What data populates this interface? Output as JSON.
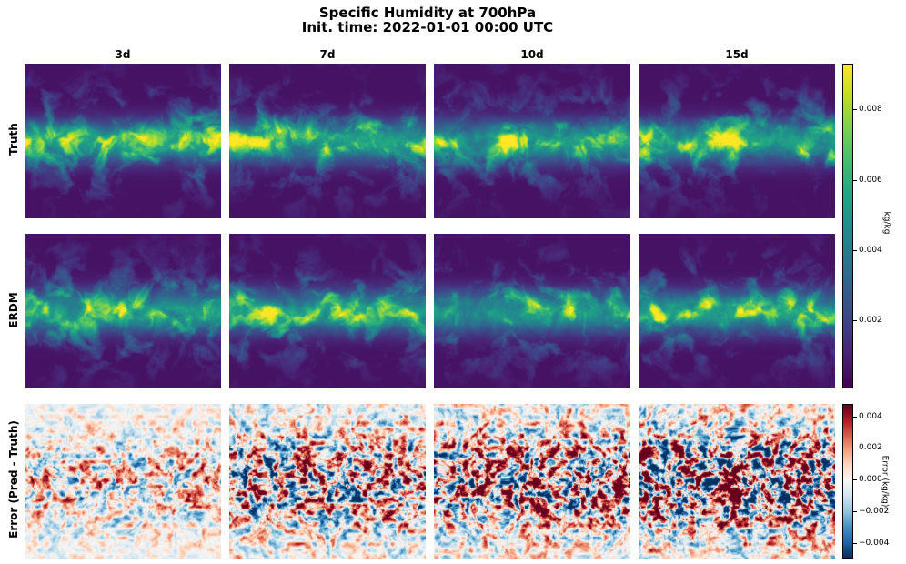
{
  "title_line1": "Specific Humidity at 700hPa",
  "title_line2": "Init. time: 2022-01-01 00:00 UTC",
  "columns": [
    "3d",
    "7d",
    "10d",
    "15d"
  ],
  "rows": [
    "Truth",
    "ERDM",
    "Error (Pred - Truth)"
  ],
  "colorbar_humidity": {
    "label": "kg/kg",
    "colormap": "viridis",
    "range": [
      0.0001,
      0.0093
    ],
    "ticks": [
      "0.002",
      "0.004",
      "0.006",
      "0.008"
    ]
  },
  "colorbar_error": {
    "label": "Error (kg/kg)",
    "colormap": "RdBu_r",
    "range": [
      -0.0047,
      0.0047
    ],
    "ticks": [
      "0.004",
      "0.002",
      "0.000",
      "−0.002",
      "−0.004"
    ]
  },
  "chart_data": {
    "type": "heatmap",
    "title": "Specific Humidity at 700hPa",
    "subtitle": "Init. time: 2022-01-01 00:00 UTC",
    "lead_times": [
      "3d",
      "7d",
      "10d",
      "15d"
    ],
    "panels": [
      {
        "row": "Truth",
        "colormap": "viridis",
        "range": [
          0.0001,
          0.0093
        ]
      },
      {
        "row": "ERDM",
        "colormap": "viridis",
        "range": [
          0.0001,
          0.0093
        ]
      },
      {
        "row": "Error (Pred - Truth)",
        "colormap": "RdBu_r",
        "range": [
          -0.0047,
          0.0047
        ]
      }
    ],
    "colorbar_ticks_humidity": [
      0.002,
      0.004,
      0.006,
      0.008
    ],
    "colorbar_ticks_error": [
      -0.004,
      -0.002,
      0.0,
      0.002,
      0.004
    ]
  }
}
